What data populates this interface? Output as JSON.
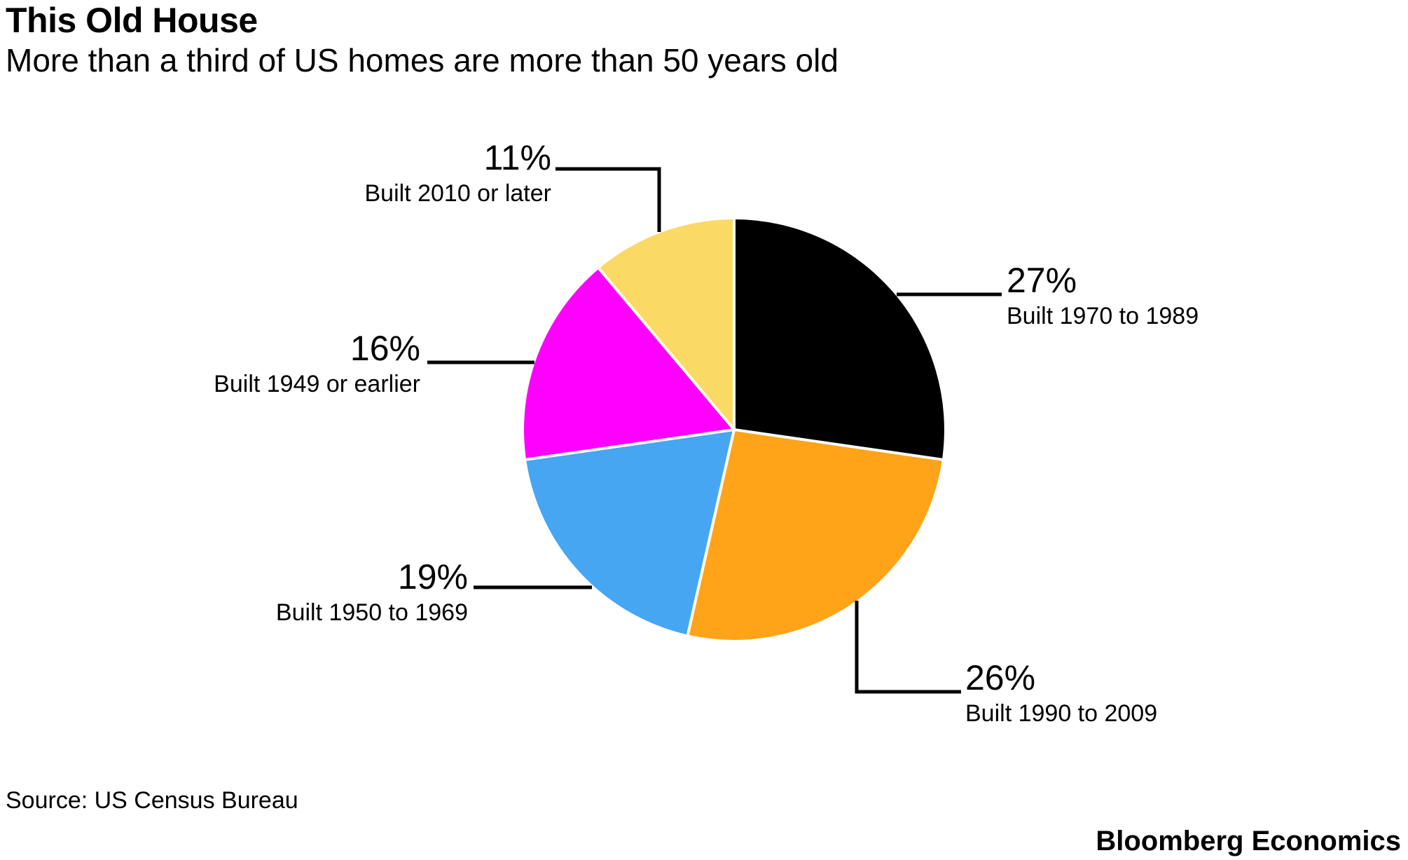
{
  "header": {
    "title": "This Old House",
    "subtitle": "More than a third of US homes are more than 50 years old"
  },
  "chart_data": {
    "type": "pie",
    "title": "This Old House",
    "subtitle": "More than a third of US homes are more than 50 years old",
    "start_angle": "12 o'clock",
    "direction": "clockwise",
    "legend_position": "outside labels with leader lines",
    "slices": [
      {
        "label": "Built 1970 to 1989",
        "value": 27,
        "pct_label": "27%",
        "color": "#000000"
      },
      {
        "label": "Built 1990 to 2009",
        "value": 26,
        "pct_label": "26%",
        "color": "#FFA319"
      },
      {
        "label": "Built 1950 to 1969",
        "value": 19,
        "pct_label": "19%",
        "color": "#46A6F2"
      },
      {
        "label": "Built 1949 or earlier",
        "value": 16,
        "pct_label": "16%",
        "color": "#FF00FF"
      },
      {
        "label": "Built 2010 or later",
        "value": 11,
        "pct_label": "11%",
        "color": "#FAD965"
      }
    ]
  },
  "footer": {
    "source": "Source: US Census Bureau",
    "brand": "Bloomberg Economics"
  }
}
